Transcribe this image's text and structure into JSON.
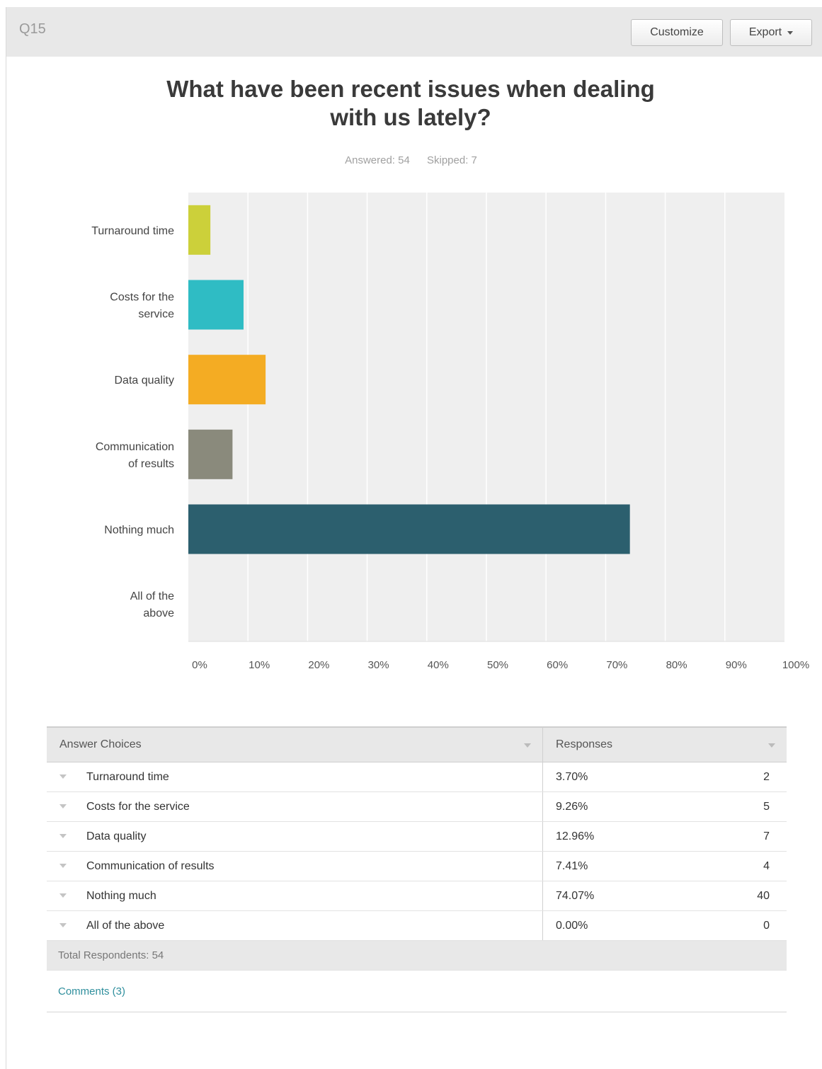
{
  "header": {
    "question_number": "Q15",
    "customize_label": "Customize",
    "export_label": "Export"
  },
  "title_line1": "What have been recent issues when dealing",
  "title_line2": "with us lately?",
  "summary": {
    "answered": "Answered: 54",
    "skipped": "Skipped: 7"
  },
  "chart_data": {
    "type": "bar",
    "orientation": "horizontal",
    "categories": [
      [
        "Turnaround time"
      ],
      [
        "Costs for the",
        "service"
      ],
      [
        "Data quality"
      ],
      [
        "Communication",
        "of results"
      ],
      [
        "Nothing much"
      ],
      [
        "All of the",
        "above"
      ]
    ],
    "values": [
      3.7,
      9.26,
      12.96,
      7.41,
      74.07,
      0.0
    ],
    "colors": [
      "#ccd03a",
      "#2fbcc4",
      "#f4ac23",
      "#8a8a7c",
      "#2c5f6e",
      "#999999"
    ],
    "xlim": [
      0,
      100
    ],
    "ticks": [
      "0%",
      "10%",
      "20%",
      "30%",
      "40%",
      "50%",
      "60%",
      "70%",
      "80%",
      "90%",
      "100%"
    ],
    "grid": true,
    "legend": "none"
  },
  "table": {
    "col_choices": "Answer Choices",
    "col_responses": "Responses",
    "rows": [
      {
        "choice": "Turnaround time",
        "pct": "3.70%",
        "count": "2"
      },
      {
        "choice": "Costs for the service",
        "pct": "9.26%",
        "count": "5"
      },
      {
        "choice": "Data quality",
        "pct": "12.96%",
        "count": "7"
      },
      {
        "choice": "Communication of results",
        "pct": "7.41%",
        "count": "4"
      },
      {
        "choice": "Nothing much",
        "pct": "74.07%",
        "count": "40"
      },
      {
        "choice": "All of the above",
        "pct": "0.00%",
        "count": "0"
      }
    ],
    "total": "Total Respondents: 54"
  },
  "comments_label": "Comments (3)"
}
